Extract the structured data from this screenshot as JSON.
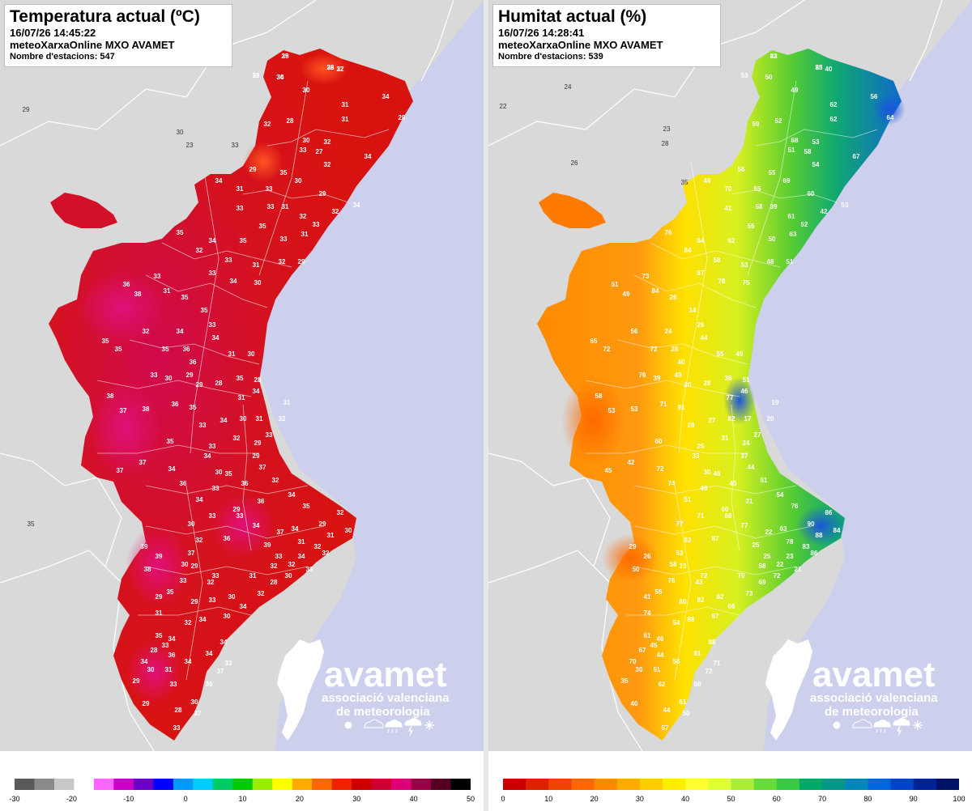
{
  "temperature": {
    "title": "Temperatura actual (ºC)",
    "datetime": "16/07/26 14:45:22",
    "source": "meteoXarxaOnline MXO AVAMET",
    "stations": "Nombre d'estacions: 547",
    "scale_ticks": [
      "-30",
      "-20",
      "-10",
      "0",
      "10",
      "20",
      "30",
      "40",
      "50"
    ],
    "scale_colors": [
      "#5a5a5a",
      "#8a8a8a",
      "#c8c8c8",
      "#ffffff",
      "#ff66ff",
      "#cc00cc",
      "#6a00cc",
      "#0000ff",
      "#0099ff",
      "#00ccff",
      "#00cc66",
      "#00cc00",
      "#99ee00",
      "#ffff00",
      "#ffaa00",
      "#ff6600",
      "#ee2200",
      "#cc0000",
      "#cc0033",
      "#dd0077",
      "#990044",
      "#550022",
      "#000000"
    ],
    "readings": [
      "35",
      "26",
      "27",
      "33",
      "34",
      "30",
      "31",
      "34",
      "32",
      "28",
      "30",
      "32",
      "31",
      "28",
      "33",
      "27",
      "29",
      "35",
      "32",
      "34",
      "31",
      "33",
      "30",
      "29",
      "33",
      "31",
      "32",
      "33",
      "32",
      "34",
      "34",
      "33",
      "35",
      "33",
      "31",
      "35",
      "31",
      "32",
      "29",
      "34",
      "33",
      "35",
      "32",
      "33",
      "34",
      "30",
      "36",
      "38",
      "32",
      "35",
      "35",
      "33",
      "31",
      "35",
      "35",
      "33",
      "36",
      "34",
      "36",
      "34",
      "31",
      "30",
      "28",
      "38",
      "37",
      "33",
      "35",
      "36",
      "35",
      "33",
      "33",
      "34",
      "32",
      "37",
      "37",
      "38",
      "35",
      "34",
      "36",
      "31",
      "30",
      "29",
      "39",
      "39",
      "37",
      "35",
      "38",
      "32",
      "33",
      "36",
      "33",
      "34",
      "36",
      "39",
      "37",
      "32",
      "34",
      "35",
      "29",
      "31",
      "32",
      "30",
      "33",
      "32",
      "34",
      "33",
      "29",
      "32",
      "30",
      "34",
      "32",
      "28",
      "30",
      "31",
      "32",
      "32",
      "33",
      "33",
      "31",
      "30",
      "34",
      "33",
      "29",
      "33",
      "30",
      "34",
      "33",
      "35",
      "36",
      "37",
      "32",
      "34",
      "29",
      "34",
      "30",
      "29",
      "33",
      "32",
      "31",
      "31",
      "29",
      "28",
      "35",
      "34",
      "29",
      "30",
      "29",
      "36",
      "34",
      "37",
      "33",
      "34",
      "35",
      "28",
      "34",
      "30",
      "31",
      "33",
      "33",
      "32",
      "31",
      "30",
      "29",
      "29",
      "28",
      "30",
      "36",
      "37",
      "34",
      "34",
      "29",
      "32",
      "32",
      "29",
      "30",
      "30"
    ],
    "outside": [
      "29",
      "30",
      "23",
      "33",
      "35"
    ],
    "range_note": "Temperatura actual"
  },
  "humidity": {
    "title": "Humitat actual (%)",
    "datetime": "16/07/26 14:28:41",
    "source": "meteoXarxaOnline MXO AVAMET",
    "stations": "Nombre d'estacions: 539",
    "scale_ticks": [
      "0",
      "10",
      "20",
      "30",
      "40",
      "50",
      "60",
      "70",
      "80",
      "90",
      "100"
    ],
    "scale_colors": [
      "#cc0000",
      "#dd2200",
      "#ee4400",
      "#ff6600",
      "#ff8800",
      "#ffaa00",
      "#ffcc00",
      "#ffee00",
      "#ffff33",
      "#ddff33",
      "#aaee33",
      "#66dd33",
      "#33cc44",
      "#00aa66",
      "#009988",
      "#0088bb",
      "#0066dd",
      "#0044cc",
      "#002299",
      "#001166"
    ],
    "readings": [
      "42",
      "25",
      "40",
      "53",
      "50",
      "49",
      "62",
      "56",
      "59",
      "52",
      "68",
      "53",
      "62",
      "64",
      "51",
      "58",
      "56",
      "55",
      "54",
      "67",
      "70",
      "65",
      "69",
      "60",
      "58",
      "39",
      "61",
      "52",
      "42",
      "53",
      "49",
      "41",
      "55",
      "50",
      "63",
      "62",
      "53",
      "48",
      "51",
      "64",
      "58",
      "76",
      "84",
      "67",
      "78",
      "75",
      "51",
      "49",
      "56",
      "65",
      "72",
      "73",
      "84",
      "26",
      "14",
      "26",
      "28",
      "24",
      "40",
      "44",
      "55",
      "49",
      "51",
      "58",
      "53",
      "76",
      "72",
      "71",
      "91",
      "28",
      "25",
      "27",
      "31",
      "45",
      "42",
      "53",
      "60",
      "72",
      "74",
      "77",
      "82",
      "24",
      "29",
      "26",
      "53",
      "55",
      "50",
      "62",
      "71",
      "87",
      "68",
      "77",
      "21",
      "25",
      "22",
      "58",
      "63",
      "76",
      "90",
      "88",
      "86",
      "84",
      "25",
      "22",
      "23",
      "21",
      "23",
      "43",
      "62",
      "66",
      "73",
      "69",
      "72",
      "78",
      "83",
      "86",
      "71",
      "72",
      "70",
      "67",
      "88",
      "82",
      "80",
      "76",
      "77",
      "51",
      "49",
      "46",
      "45",
      "44",
      "61",
      "54",
      "60",
      "33",
      "30",
      "37",
      "27",
      "20",
      "19",
      "17",
      "20",
      "28",
      "38",
      "46",
      "49",
      "39",
      "41",
      "44",
      "56",
      "50",
      "57",
      "46",
      "61",
      "67",
      "70",
      "58",
      "74",
      "45",
      "62",
      "54",
      "51",
      "30",
      "35",
      "40",
      "44",
      "61",
      "68",
      "72",
      "81",
      "88",
      "33",
      "83"
    ],
    "outside": [
      "22",
      "24",
      "23",
      "26",
      "35",
      "28"
    ]
  },
  "logo": {
    "brand": "avamet",
    "line1": "associació valenciana",
    "line2": "de meteorologia",
    "icons": [
      "sun-icon",
      "cloud-icon",
      "rain-icon",
      "storm-icon",
      "snow-icon"
    ]
  }
}
